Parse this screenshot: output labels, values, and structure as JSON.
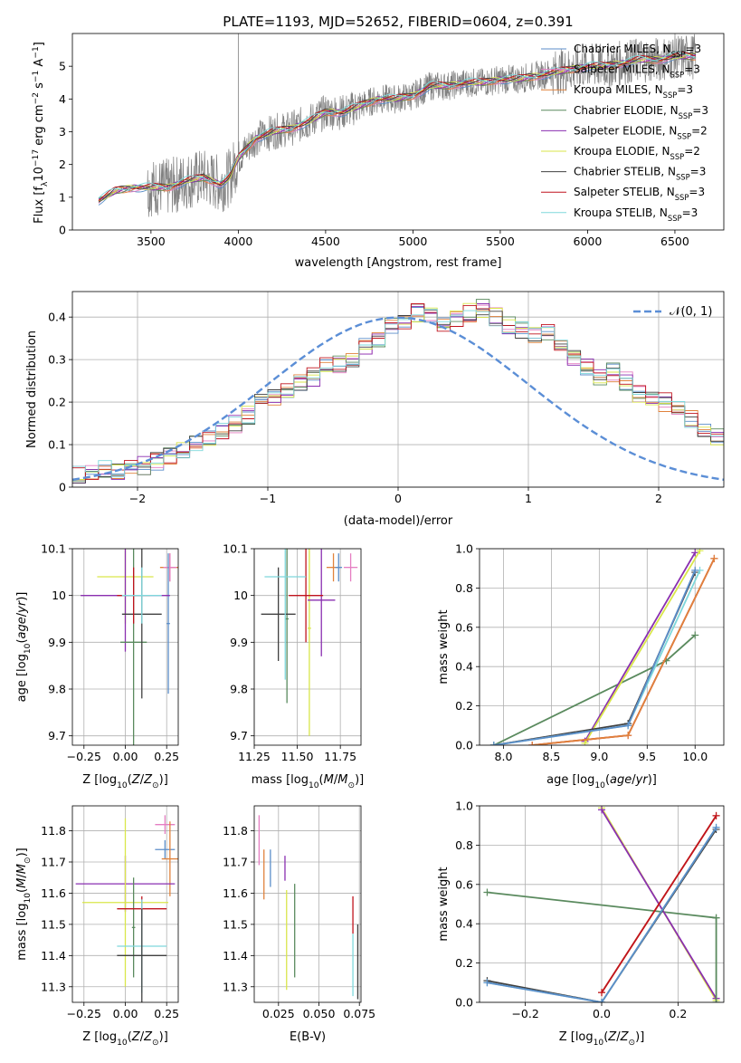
{
  "title": "PLATE=1193, MJD=52652, FIBERID=0604, z=0.391",
  "colors": {
    "Chabrier MILES": "#5b8ec9",
    "Salpeter MILES": "#e57ec2",
    "Kroupa MILES": "#e0823c",
    "Chabrier ELODIE": "#5a8a5e",
    "Salpeter ELODIE": "#8a2fb0",
    "Kroupa ELODIE": "#d9e64a",
    "Chabrier STELIB": "#404040",
    "Salpeter STELIB": "#c0141e",
    "Kroupa STELIB": "#7fd8dc",
    "data": "#808080",
    "normal": "#5b8ed6"
  },
  "chart_data": [
    {
      "id": "spectrum",
      "type": "line",
      "xlabel": "wavelength [Angstrom, rest frame]",
      "ylabel": "Flux [f_λ10^-17 erg cm^-2 s^-1 A^-1]",
      "xlim": [
        3050,
        6780
      ],
      "ylim": [
        0,
        6
      ],
      "xticks": [
        3500,
        4000,
        4500,
        5000,
        5500,
        6000,
        6500
      ],
      "yticks": [
        0,
        1,
        2,
        3,
        4,
        5
      ],
      "legend": [
        {
          "label": "Chabrier MILES",
          "nssp": "=3"
        },
        {
          "label": "Salpeter MILES",
          "nssp": "=3"
        },
        {
          "label": "Kroupa MILES",
          "nssp": "=3"
        },
        {
          "label": "Chabrier ELODIE",
          "nssp": "=3"
        },
        {
          "label": "Salpeter ELODIE",
          "nssp": "=2"
        },
        {
          "label": "Kroupa ELODIE",
          "nssp": "=2"
        },
        {
          "label": "Chabrier STELIB",
          "nssp": "=3"
        },
        {
          "label": "Salpeter STELIB",
          "nssp": "=3"
        },
        {
          "label": "Kroupa STELIB",
          "nssp": "=3"
        }
      ],
      "continuum": {
        "x": [
          3200,
          3300,
          3400,
          3500,
          3600,
          3700,
          3800,
          3900,
          3950,
          4000,
          4100,
          4200,
          4300,
          4400,
          4500,
          4600,
          4700,
          4800,
          4900,
          5000,
          5100,
          5200,
          5300,
          5400,
          5500,
          5600,
          5700,
          5800,
          5900,
          6000,
          6100,
          6200,
          6300,
          6400,
          6500,
          6600
        ],
        "y": [
          0.9,
          1.2,
          1.3,
          1.3,
          1.3,
          1.5,
          1.6,
          1.4,
          1.6,
          2.2,
          2.8,
          3.0,
          3.1,
          3.3,
          3.6,
          3.6,
          3.8,
          4.0,
          4.0,
          4.1,
          4.4,
          4.4,
          4.5,
          4.5,
          4.6,
          4.6,
          4.7,
          4.8,
          4.9,
          5.0,
          5.0,
          5.1,
          5.2,
          5.2,
          5.3,
          5.3
        ]
      },
      "wavelength_start": 3200,
      "wavelength_end": 6620
    },
    {
      "id": "residuals",
      "type": "area",
      "xlabel": "(data-model)/error",
      "ylabel": "Normed distribution",
      "xlim": [
        -2.5,
        2.5
      ],
      "ylim": [
        0,
        0.46
      ],
      "xticks": [
        -2,
        -1,
        0,
        1,
        2
      ],
      "xticklabels": [
        "−2",
        "−1",
        "0",
        "1",
        "2"
      ],
      "yticks": [
        0,
        0.1,
        0.2,
        0.3,
        0.4
      ],
      "legend": "𝒩(0, 1)",
      "bin_width": 0.1,
      "bin_start": -2.5,
      "base_hist": [
        0.03,
        0.03,
        0.04,
        0.04,
        0.05,
        0.05,
        0.06,
        0.07,
        0.09,
        0.1,
        0.11,
        0.13,
        0.15,
        0.17,
        0.2,
        0.21,
        0.23,
        0.25,
        0.26,
        0.29,
        0.29,
        0.3,
        0.33,
        0.35,
        0.38,
        0.39,
        0.41,
        0.4,
        0.38,
        0.4,
        0.41,
        0.42,
        0.4,
        0.38,
        0.37,
        0.36,
        0.36,
        0.33,
        0.3,
        0.28,
        0.26,
        0.27,
        0.25,
        0.22,
        0.21,
        0.2,
        0.18,
        0.16,
        0.14,
        0.12,
        0.11,
        0.09,
        0.08,
        0.07,
        0.06,
        0.05,
        0.05,
        0.05,
        0.04,
        0.04
      ]
    },
    {
      "id": "age-z",
      "type": "scatter",
      "xlabel": "Z [log10(Z/Z⊙)]",
      "ylabel": "age  [log10(age/yr)]",
      "xlim": [
        -0.32,
        0.32
      ],
      "ylim": [
        9.68,
        10.1
      ],
      "xticks": [
        -0.25,
        0,
        0.25
      ],
      "xticklabels": [
        "−0.25",
        "0.00",
        "0.25"
      ],
      "yticks": [
        9.7,
        9.8,
        9.9,
        10.0,
        10.1
      ],
      "points": [
        {
          "s": "Kroupa MILES",
          "x": 0.27,
          "y": 10.06,
          "xe": 0.06,
          "ye": 0.03
        },
        {
          "s": "Salpeter MILES",
          "x": 0.27,
          "y": 10.06,
          "xe": 0.04,
          "ye": 0.03
        },
        {
          "s": "Chabrier MILES",
          "x": 0.26,
          "y": 9.94,
          "xe": 0.01,
          "ye": 0.15
        },
        {
          "s": "Kroupa ELODIE",
          "x": 0.0,
          "y": 10.04,
          "xe": 0.17,
          "ye": 0.1
        },
        {
          "s": "Salpeter ELODIE",
          "x": 0.0,
          "y": 10.0,
          "xe": 0.27,
          "ye": 0.12
        },
        {
          "s": "Chabrier ELODIE",
          "x": 0.05,
          "y": 9.9,
          "xe": 0.08,
          "ye": 0.24
        },
        {
          "s": "Chabrier STELIB",
          "x": 0.1,
          "y": 9.96,
          "xe": 0.12,
          "ye": 0.18
        },
        {
          "s": "Salpeter STELIB",
          "x": 0.05,
          "y": 10.0,
          "xe": 0.1,
          "ye": 0.06
        },
        {
          "s": "Kroupa STELIB",
          "x": 0.1,
          "y": 10.0,
          "xe": 0.12,
          "ye": 0.06
        }
      ]
    },
    {
      "id": "age-mass",
      "type": "scatter",
      "xlabel": "mass [log10(M/M⊙)]",
      "xlim": [
        11.25,
        11.87
      ],
      "ylim": [
        9.68,
        10.1
      ],
      "xticks": [
        11.25,
        11.5,
        11.75
      ],
      "xticklabels": [
        "11.25",
        "11.50",
        "11.75"
      ],
      "yticks": [
        9.7,
        9.8,
        9.9,
        10.0,
        10.1
      ],
      "points": [
        {
          "s": "Kroupa MILES",
          "x": 11.71,
          "y": 10.06,
          "xe": 0.04,
          "ye": 0.03
        },
        {
          "s": "Salpeter MILES",
          "x": 11.81,
          "y": 10.06,
          "xe": 0.04,
          "ye": 0.03
        },
        {
          "s": "Chabrier MILES",
          "x": 11.74,
          "y": 10.06,
          "xe": 0.02,
          "ye": 0.03
        },
        {
          "s": "Kroupa ELODIE",
          "x": 11.57,
          "y": 9.93,
          "xe": 0.01,
          "ye": 0.23
        },
        {
          "s": "Salpeter ELODIE",
          "x": 11.64,
          "y": 9.99,
          "xe": 0.08,
          "ye": 0.12
        },
        {
          "s": "Chabrier ELODIE",
          "x": 11.44,
          "y": 9.95,
          "xe": 0.01,
          "ye": 0.18
        },
        {
          "s": "Chabrier STELIB",
          "x": 11.39,
          "y": 9.96,
          "xe": 0.1,
          "ye": 0.1
        },
        {
          "s": "Salpeter STELIB",
          "x": 11.55,
          "y": 10.0,
          "xe": 0.1,
          "ye": 0.1
        },
        {
          "s": "Kroupa STELIB",
          "x": 11.43,
          "y": 10.04,
          "xe": 0.12,
          "ye": 0.22
        }
      ]
    },
    {
      "id": "weight-age",
      "type": "line",
      "xlabel": "age  [log10(age/yr)]",
      "ylabel": "mass weight",
      "xlim": [
        7.75,
        10.3
      ],
      "ylim": [
        0,
        1
      ],
      "xticks": [
        8.0,
        8.5,
        9.0,
        9.5,
        10.0
      ],
      "xticklabels": [
        "8.0",
        "8.5",
        "9.0",
        "9.5",
        "10.0"
      ],
      "yticks": [
        0,
        0.2,
        0.4,
        0.6,
        0.8,
        1.0
      ],
      "yticklabels": [
        "0.0",
        "0.2",
        "0.4",
        "0.6",
        "0.8",
        "1.0"
      ],
      "series": [
        {
          "s": "Chabrier ELODIE",
          "x": [
            7.9,
            9.7,
            10.0
          ],
          "y": [
            0.0,
            0.43,
            0.56
          ]
        },
        {
          "s": "Salpeter ELODIE",
          "x": [
            8.85,
            10.0
          ],
          "y": [
            0.02,
            0.98
          ]
        },
        {
          "s": "Kroupa ELODIE",
          "x": [
            8.85,
            10.05
          ],
          "y": [
            0.01,
            0.99
          ]
        },
        {
          "s": "Chabrier STELIB",
          "x": [
            7.9,
            9.3,
            10.0
          ],
          "y": [
            0.0,
            0.11,
            0.88
          ]
        },
        {
          "s": "Kroupa STELIB",
          "x": [
            7.9,
            9.3,
            10.05
          ],
          "y": [
            0.0,
            0.1,
            0.89
          ]
        },
        {
          "s": "Chabrier MILES",
          "x": [
            7.9,
            9.3,
            10.0
          ],
          "y": [
            0.0,
            0.1,
            0.89
          ]
        },
        {
          "s": "Salpeter STELIB",
          "x": [
            8.3,
            9.3,
            10.2
          ],
          "y": [
            0.0,
            0.05,
            0.95
          ]
        },
        {
          "s": "Kroupa MILES",
          "x": [
            8.3,
            9.3,
            10.2
          ],
          "y": [
            0.0,
            0.05,
            0.95
          ]
        }
      ]
    },
    {
      "id": "mass-z",
      "type": "scatter",
      "xlabel": "Z [log10(Z/Z⊙)]",
      "ylabel": "mass [log10(M/M⊙)]",
      "xlim": [
        -0.32,
        0.32
      ],
      "ylim": [
        11.25,
        11.88
      ],
      "xticks": [
        -0.25,
        0,
        0.25
      ],
      "xticklabels": [
        "−0.25",
        "0.00",
        "0.25"
      ],
      "yticks": [
        11.3,
        11.4,
        11.5,
        11.6,
        11.7,
        11.8
      ],
      "points": [
        {
          "s": "Salpeter MILES",
          "x": 0.24,
          "y": 11.82,
          "xe": 0.06,
          "ye": 0.03
        },
        {
          "s": "Chabrier MILES",
          "x": 0.24,
          "y": 11.74,
          "xe": 0.06,
          "ye": 0.03
        },
        {
          "s": "Kroupa MILES",
          "x": 0.27,
          "y": 11.71,
          "xe": 0.05,
          "ye": 0.12
        },
        {
          "s": "Salpeter ELODIE",
          "x": 0.0,
          "y": 11.63,
          "xe": 0.3,
          "ye": 0.09
        },
        {
          "s": "Kroupa ELODIE",
          "x": 0.0,
          "y": 11.57,
          "xe": 0.26,
          "ye": 0.27
        },
        {
          "s": "Chabrier ELODIE",
          "x": 0.05,
          "y": 11.49,
          "xe": 0.01,
          "ye": 0.16
        },
        {
          "s": "Salpeter STELIB",
          "x": 0.1,
          "y": 11.55,
          "xe": 0.15,
          "ye": 0.04
        },
        {
          "s": "Kroupa STELIB",
          "x": 0.1,
          "y": 11.43,
          "xe": 0.15,
          "ye": 0.15
        },
        {
          "s": "Chabrier STELIB",
          "x": 0.1,
          "y": 11.4,
          "xe": 0.15,
          "ye": 0.15
        }
      ]
    },
    {
      "id": "mass-ebv",
      "type": "scatter",
      "xlabel": "E(B-V)",
      "xlim": [
        0.01,
        0.076
      ],
      "ylim": [
        11.25,
        11.88
      ],
      "xticks": [
        0.025,
        0.05,
        0.075
      ],
      "xticklabels": [
        "0.025",
        "0.050",
        "0.075"
      ],
      "yticks": [
        11.3,
        11.4,
        11.5,
        11.6,
        11.7,
        11.8
      ],
      "points": [
        {
          "s": "Salpeter MILES",
          "x": 0.013,
          "y": 11.77,
          "ye": 0.08
        },
        {
          "s": "Kroupa MILES",
          "x": 0.016,
          "y": 11.66,
          "ye": 0.08
        },
        {
          "s": "Chabrier MILES",
          "x": 0.02,
          "y": 11.68,
          "ye": 0.06
        },
        {
          "s": "Salpeter ELODIE",
          "x": 0.029,
          "y": 11.68,
          "ye": 0.04
        },
        {
          "s": "Kroupa ELODIE",
          "x": 0.03,
          "y": 11.45,
          "ye": 0.16
        },
        {
          "s": "Chabrier ELODIE",
          "x": 0.035,
          "y": 11.48,
          "ye": 0.15
        },
        {
          "s": "Salpeter STELIB",
          "x": 0.071,
          "y": 11.53,
          "ye": 0.06
        },
        {
          "s": "Kroupa STELIB",
          "x": 0.071,
          "y": 11.37,
          "ye": 0.1
        },
        {
          "s": "Chabrier STELIB",
          "x": 0.074,
          "y": 11.38,
          "ye": 0.12
        }
      ]
    },
    {
      "id": "weight-z",
      "type": "line",
      "xlabel": "Z [log10(Z/Z⊙)]",
      "ylabel": "mass weight",
      "xlim": [
        -0.32,
        0.32
      ],
      "ylim": [
        0,
        1
      ],
      "xticks": [
        -0.2,
        0,
        0.2
      ],
      "xticklabels": [
        "−0.2",
        "0.0",
        "0.2"
      ],
      "yticks": [
        0,
        0.2,
        0.4,
        0.6,
        0.8,
        1.0
      ],
      "yticklabels": [
        "0.0",
        "0.2",
        "0.4",
        "0.6",
        "0.8",
        "1.0"
      ],
      "series": [
        {
          "s": "Chabrier ELODIE",
          "x": [
            -0.3,
            0.3
          ],
          "y": [
            0.56,
            0.43
          ]
        },
        {
          "s": "Kroupa ELODIE",
          "x": [
            0.0,
            0.3
          ],
          "y": [
            0.99,
            0.01
          ]
        },
        {
          "s": "Salpeter ELODIE",
          "x": [
            0.0,
            0.3
          ],
          "y": [
            0.98,
            0.02
          ]
        },
        {
          "s": "Chabrier STELIB",
          "x": [
            -0.3,
            0.0,
            0.3
          ],
          "y": [
            0.11,
            0.0,
            0.88
          ]
        },
        {
          "s": "Kroupa STELIB",
          "x": [
            -0.3,
            0.0,
            0.3
          ],
          "y": [
            0.1,
            0.0,
            0.89
          ]
        },
        {
          "s": "Chabrier MILES",
          "x": [
            -0.3,
            0.0,
            0.3
          ],
          "y": [
            0.1,
            0.0,
            0.89
          ]
        },
        {
          "s": "Kroupa MILES",
          "x": [
            0.0,
            0.3
          ],
          "y": [
            0.05,
            0.95
          ]
        },
        {
          "s": "Salpeter STELIB",
          "x": [
            0.0,
            0.3
          ],
          "y": [
            0.05,
            0.95
          ]
        },
        {
          "s": "Chabrier ELODIE",
          "x": [
            0.3,
            0.3
          ],
          "y": [
            0.0,
            0.43
          ]
        }
      ]
    }
  ]
}
